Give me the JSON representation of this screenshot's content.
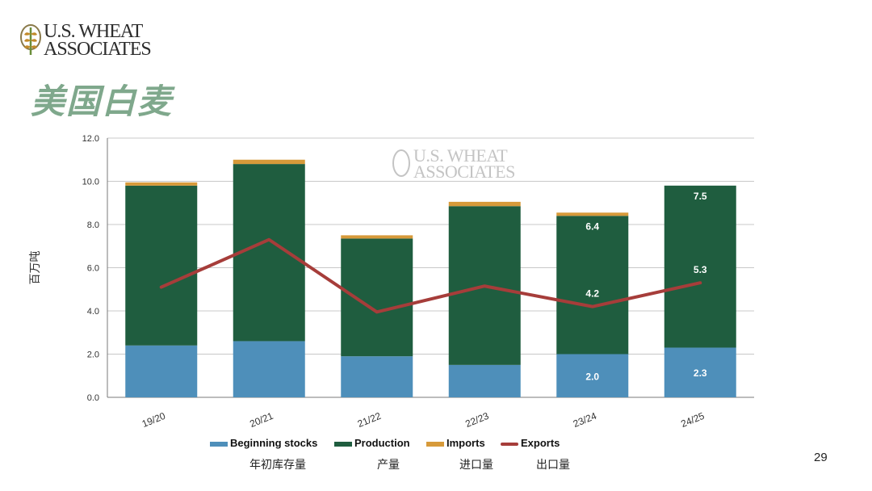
{
  "brand": {
    "logo_line1": "U.S. WHEAT",
    "logo_line2": "ASSOCIATES"
  },
  "slide": {
    "title": "美国白麦",
    "page_number": "29"
  },
  "colors": {
    "beginning_stocks": "#4e8fba",
    "production": "#1f5d3f",
    "imports": "#d79a3a",
    "exports": "#a63d3a",
    "title": "#7fa88c"
  },
  "chart_data": {
    "type": "bar",
    "stacked": true,
    "ylabel": "百万吨",
    "ylim": [
      0,
      12
    ],
    "yticks": [
      "0.0",
      "2.0",
      "4.0",
      "6.0",
      "8.0",
      "10.0",
      "12.0"
    ],
    "ytick_values": [
      0,
      2,
      4,
      6,
      8,
      10,
      12
    ],
    "categories": [
      "19/20",
      "20/21",
      "21/22",
      "22/23",
      "23/24",
      "24/25"
    ],
    "series": [
      {
        "name": "Beginning stocks",
        "cn": "年初库存量",
        "values": [
          2.4,
          2.6,
          1.9,
          1.5,
          2.0,
          2.3
        ]
      },
      {
        "name": "Production",
        "cn": "产量",
        "values": [
          7.4,
          8.2,
          5.45,
          7.35,
          6.4,
          7.5
        ]
      },
      {
        "name": "Imports",
        "cn": "进口量",
        "values": [
          0.15,
          0.2,
          0.15,
          0.2,
          0.15,
          0.0
        ]
      }
    ],
    "line_series": {
      "name": "Exports",
      "cn": "出口量",
      "values": [
        5.1,
        7.3,
        3.95,
        5.15,
        4.2,
        5.3
      ]
    },
    "data_labels": {
      "Beginning stocks": [
        "",
        "",
        "",
        "",
        "2.0",
        "2.3"
      ],
      "Production": [
        "",
        "",
        "",
        "",
        "6.4",
        "7.5"
      ],
      "Exports": [
        "",
        "",
        "",
        "",
        "4.2",
        "5.3"
      ]
    },
    "grid": true,
    "legend": "bottom",
    "watermark": {
      "line1": "U.S. WHEAT",
      "line2": "ASSOCIATES"
    }
  }
}
